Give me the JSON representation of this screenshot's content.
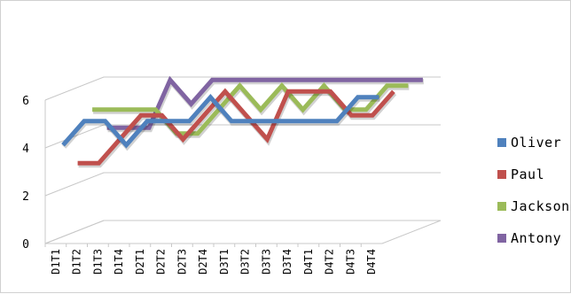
{
  "chart_data": {
    "type": "line",
    "title": "",
    "xlabel": "",
    "ylabel": "",
    "ylim": [
      0,
      6
    ],
    "yticks": [
      "0",
      "2",
      "4",
      "6"
    ],
    "grid": true,
    "legend_position": "right",
    "categories": [
      "D1T1",
      "D1T2",
      "D1T3",
      "D1T4",
      "D2T1",
      "D2T2",
      "D2T3",
      "D2T4",
      "D3T1",
      "D3T2",
      "D3T3",
      "D3T4",
      "D4T1",
      "D4T2",
      "D4T3",
      "D4T4"
    ],
    "series": [
      {
        "name": "Oliver",
        "color": "#4f81bd",
        "values": [
          4,
          5,
          5,
          4,
          5,
          5,
          5,
          6,
          5,
          5,
          5,
          5,
          5,
          5,
          6,
          6
        ]
      },
      {
        "name": "Paul",
        "color": "#c0504d",
        "values": [
          3,
          3,
          4,
          5,
          5,
          4,
          5,
          6,
          5,
          4,
          6,
          6,
          6,
          5,
          5,
          6
        ]
      },
      {
        "name": "Jackson",
        "color": "#9bbb59",
        "values": [
          5,
          5,
          5,
          5,
          4,
          4,
          5,
          6,
          5,
          6,
          5,
          6,
          5,
          5,
          6,
          6
        ]
      },
      {
        "name": "Antony",
        "color": "#8064a2",
        "values": [
          4,
          4,
          4,
          6,
          5,
          6,
          6,
          6,
          6,
          6,
          6,
          6,
          6,
          6,
          6,
          6
        ]
      }
    ]
  }
}
